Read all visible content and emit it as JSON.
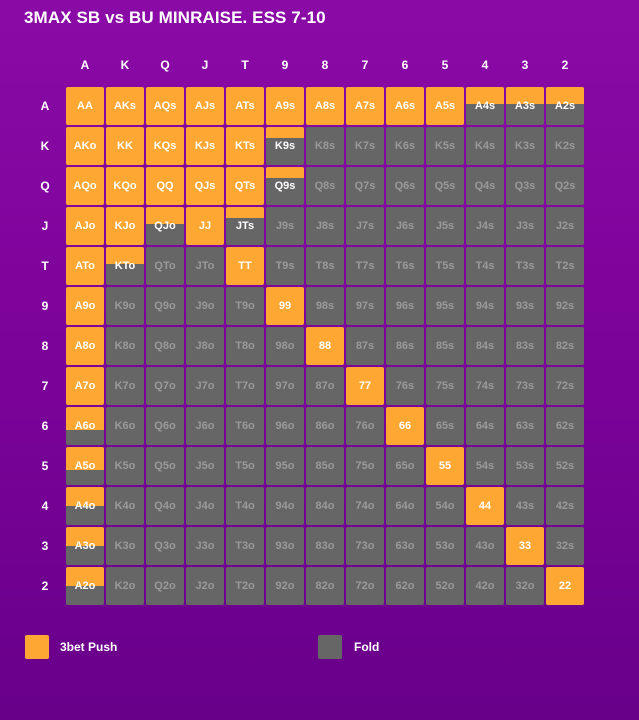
{
  "title": "3MAX SB vs BU MINRAISE. ESS 7-10",
  "ranks": [
    "A",
    "K",
    "Q",
    "J",
    "T",
    "9",
    "8",
    "7",
    "6",
    "5",
    "4",
    "3",
    "2"
  ],
  "colors": {
    "push": "#ffa733",
    "fold": "#666666"
  },
  "legend": [
    {
      "label": "3bet Push",
      "color": "#ffa733"
    },
    {
      "label": "Fold",
      "color": "#666666"
    }
  ],
  "grid": [
    [
      {
        "hand": "AA",
        "push": 1
      },
      {
        "hand": "AKs",
        "push": 1
      },
      {
        "hand": "AQs",
        "push": 1
      },
      {
        "hand": "AJs",
        "push": 1
      },
      {
        "hand": "ATs",
        "push": 1
      },
      {
        "hand": "A9s",
        "push": 1
      },
      {
        "hand": "A8s",
        "push": 1
      },
      {
        "hand": "A7s",
        "push": 1
      },
      {
        "hand": "A6s",
        "push": 1
      },
      {
        "hand": "A5s",
        "push": 1
      },
      {
        "hand": "A4s",
        "push": 0.45
      },
      {
        "hand": "A3s",
        "push": 0.45
      },
      {
        "hand": "A2s",
        "push": 0.45
      }
    ],
    [
      {
        "hand": "AKo",
        "push": 1
      },
      {
        "hand": "KK",
        "push": 1
      },
      {
        "hand": "KQs",
        "push": 1
      },
      {
        "hand": "KJs",
        "push": 1
      },
      {
        "hand": "KTs",
        "push": 1
      },
      {
        "hand": "K9s",
        "push": 0.3
      },
      {
        "hand": "K8s",
        "push": 0
      },
      {
        "hand": "K7s",
        "push": 0
      },
      {
        "hand": "K6s",
        "push": 0
      },
      {
        "hand": "K5s",
        "push": 0
      },
      {
        "hand": "K4s",
        "push": 0
      },
      {
        "hand": "K3s",
        "push": 0
      },
      {
        "hand": "K2s",
        "push": 0
      }
    ],
    [
      {
        "hand": "AQo",
        "push": 1
      },
      {
        "hand": "KQo",
        "push": 1
      },
      {
        "hand": "QQ",
        "push": 1
      },
      {
        "hand": "QJs",
        "push": 1
      },
      {
        "hand": "QTs",
        "push": 1
      },
      {
        "hand": "Q9s",
        "push": 0.3
      },
      {
        "hand": "Q8s",
        "push": 0
      },
      {
        "hand": "Q7s",
        "push": 0
      },
      {
        "hand": "Q6s",
        "push": 0
      },
      {
        "hand": "Q5s",
        "push": 0
      },
      {
        "hand": "Q4s",
        "push": 0
      },
      {
        "hand": "Q3s",
        "push": 0
      },
      {
        "hand": "Q2s",
        "push": 0
      }
    ],
    [
      {
        "hand": "AJo",
        "push": 1
      },
      {
        "hand": "KJo",
        "push": 1
      },
      {
        "hand": "QJo",
        "push": 0.45
      },
      {
        "hand": "JJ",
        "push": 1
      },
      {
        "hand": "JTs",
        "push": 0.3
      },
      {
        "hand": "J9s",
        "push": 0
      },
      {
        "hand": "J8s",
        "push": 0
      },
      {
        "hand": "J7s",
        "push": 0
      },
      {
        "hand": "J6s",
        "push": 0
      },
      {
        "hand": "J5s",
        "push": 0
      },
      {
        "hand": "J4s",
        "push": 0
      },
      {
        "hand": "J3s",
        "push": 0
      },
      {
        "hand": "J2s",
        "push": 0
      }
    ],
    [
      {
        "hand": "ATo",
        "push": 1
      },
      {
        "hand": "KTo",
        "push": 0.45
      },
      {
        "hand": "QTo",
        "push": 0
      },
      {
        "hand": "JTo",
        "push": 0
      },
      {
        "hand": "TT",
        "push": 1
      },
      {
        "hand": "T9s",
        "push": 0
      },
      {
        "hand": "T8s",
        "push": 0
      },
      {
        "hand": "T7s",
        "push": 0
      },
      {
        "hand": "T6s",
        "push": 0
      },
      {
        "hand": "T5s",
        "push": 0
      },
      {
        "hand": "T4s",
        "push": 0
      },
      {
        "hand": "T3s",
        "push": 0
      },
      {
        "hand": "T2s",
        "push": 0
      }
    ],
    [
      {
        "hand": "A9o",
        "push": 1
      },
      {
        "hand": "K9o",
        "push": 0
      },
      {
        "hand": "Q9o",
        "push": 0
      },
      {
        "hand": "J9o",
        "push": 0
      },
      {
        "hand": "T9o",
        "push": 0
      },
      {
        "hand": "99",
        "push": 1
      },
      {
        "hand": "98s",
        "push": 0
      },
      {
        "hand": "97s",
        "push": 0
      },
      {
        "hand": "96s",
        "push": 0
      },
      {
        "hand": "95s",
        "push": 0
      },
      {
        "hand": "94s",
        "push": 0
      },
      {
        "hand": "93s",
        "push": 0
      },
      {
        "hand": "92s",
        "push": 0
      }
    ],
    [
      {
        "hand": "A8o",
        "push": 1
      },
      {
        "hand": "K8o",
        "push": 0
      },
      {
        "hand": "Q8o",
        "push": 0
      },
      {
        "hand": "J8o",
        "push": 0
      },
      {
        "hand": "T8o",
        "push": 0
      },
      {
        "hand": "98o",
        "push": 0
      },
      {
        "hand": "88",
        "push": 1
      },
      {
        "hand": "87s",
        "push": 0
      },
      {
        "hand": "86s",
        "push": 0
      },
      {
        "hand": "85s",
        "push": 0
      },
      {
        "hand": "84s",
        "push": 0
      },
      {
        "hand": "83s",
        "push": 0
      },
      {
        "hand": "82s",
        "push": 0
      }
    ],
    [
      {
        "hand": "A7o",
        "push": 1
      },
      {
        "hand": "K7o",
        "push": 0
      },
      {
        "hand": "Q7o",
        "push": 0
      },
      {
        "hand": "J7o",
        "push": 0
      },
      {
        "hand": "T7o",
        "push": 0
      },
      {
        "hand": "97o",
        "push": 0
      },
      {
        "hand": "87o",
        "push": 0
      },
      {
        "hand": "77",
        "push": 1
      },
      {
        "hand": "76s",
        "push": 0
      },
      {
        "hand": "75s",
        "push": 0
      },
      {
        "hand": "74s",
        "push": 0
      },
      {
        "hand": "73s",
        "push": 0
      },
      {
        "hand": "72s",
        "push": 0
      }
    ],
    [
      {
        "hand": "A6o",
        "push": 0.6
      },
      {
        "hand": "K6o",
        "push": 0
      },
      {
        "hand": "Q6o",
        "push": 0
      },
      {
        "hand": "J6o",
        "push": 0
      },
      {
        "hand": "T6o",
        "push": 0
      },
      {
        "hand": "96o",
        "push": 0
      },
      {
        "hand": "86o",
        "push": 0
      },
      {
        "hand": "76o",
        "push": 0
      },
      {
        "hand": "66",
        "push": 1
      },
      {
        "hand": "65s",
        "push": 0
      },
      {
        "hand": "64s",
        "push": 0
      },
      {
        "hand": "63s",
        "push": 0
      },
      {
        "hand": "62s",
        "push": 0
      }
    ],
    [
      {
        "hand": "A5o",
        "push": 0.6
      },
      {
        "hand": "K5o",
        "push": 0
      },
      {
        "hand": "Q5o",
        "push": 0
      },
      {
        "hand": "J5o",
        "push": 0
      },
      {
        "hand": "T5o",
        "push": 0
      },
      {
        "hand": "95o",
        "push": 0
      },
      {
        "hand": "85o",
        "push": 0
      },
      {
        "hand": "75o",
        "push": 0
      },
      {
        "hand": "65o",
        "push": 0
      },
      {
        "hand": "55",
        "push": 1
      },
      {
        "hand": "54s",
        "push": 0
      },
      {
        "hand": "53s",
        "push": 0
      },
      {
        "hand": "52s",
        "push": 0
      }
    ],
    [
      {
        "hand": "A4o",
        "push": 0.5
      },
      {
        "hand": "K4o",
        "push": 0
      },
      {
        "hand": "Q4o",
        "push": 0
      },
      {
        "hand": "J4o",
        "push": 0
      },
      {
        "hand": "T4o",
        "push": 0
      },
      {
        "hand": "94o",
        "push": 0
      },
      {
        "hand": "84o",
        "push": 0
      },
      {
        "hand": "74o",
        "push": 0
      },
      {
        "hand": "64o",
        "push": 0
      },
      {
        "hand": "54o",
        "push": 0
      },
      {
        "hand": "44",
        "push": 1
      },
      {
        "hand": "43s",
        "push": 0
      },
      {
        "hand": "42s",
        "push": 0
      }
    ],
    [
      {
        "hand": "A3o",
        "push": 0.5
      },
      {
        "hand": "K3o",
        "push": 0
      },
      {
        "hand": "Q3o",
        "push": 0
      },
      {
        "hand": "J3o",
        "push": 0
      },
      {
        "hand": "T3o",
        "push": 0
      },
      {
        "hand": "93o",
        "push": 0
      },
      {
        "hand": "83o",
        "push": 0
      },
      {
        "hand": "73o",
        "push": 0
      },
      {
        "hand": "63o",
        "push": 0
      },
      {
        "hand": "53o",
        "push": 0
      },
      {
        "hand": "43o",
        "push": 0
      },
      {
        "hand": "33",
        "push": 1
      },
      {
        "hand": "32s",
        "push": 0
      }
    ],
    [
      {
        "hand": "A2o",
        "push": 0.5
      },
      {
        "hand": "K2o",
        "push": 0
      },
      {
        "hand": "Q2o",
        "push": 0
      },
      {
        "hand": "J2o",
        "push": 0
      },
      {
        "hand": "T2o",
        "push": 0
      },
      {
        "hand": "92o",
        "push": 0
      },
      {
        "hand": "82o",
        "push": 0
      },
      {
        "hand": "72o",
        "push": 0
      },
      {
        "hand": "62o",
        "push": 0
      },
      {
        "hand": "52o",
        "push": 0
      },
      {
        "hand": "42o",
        "push": 0
      },
      {
        "hand": "32o",
        "push": 0
      },
      {
        "hand": "22",
        "push": 1
      }
    ]
  ]
}
